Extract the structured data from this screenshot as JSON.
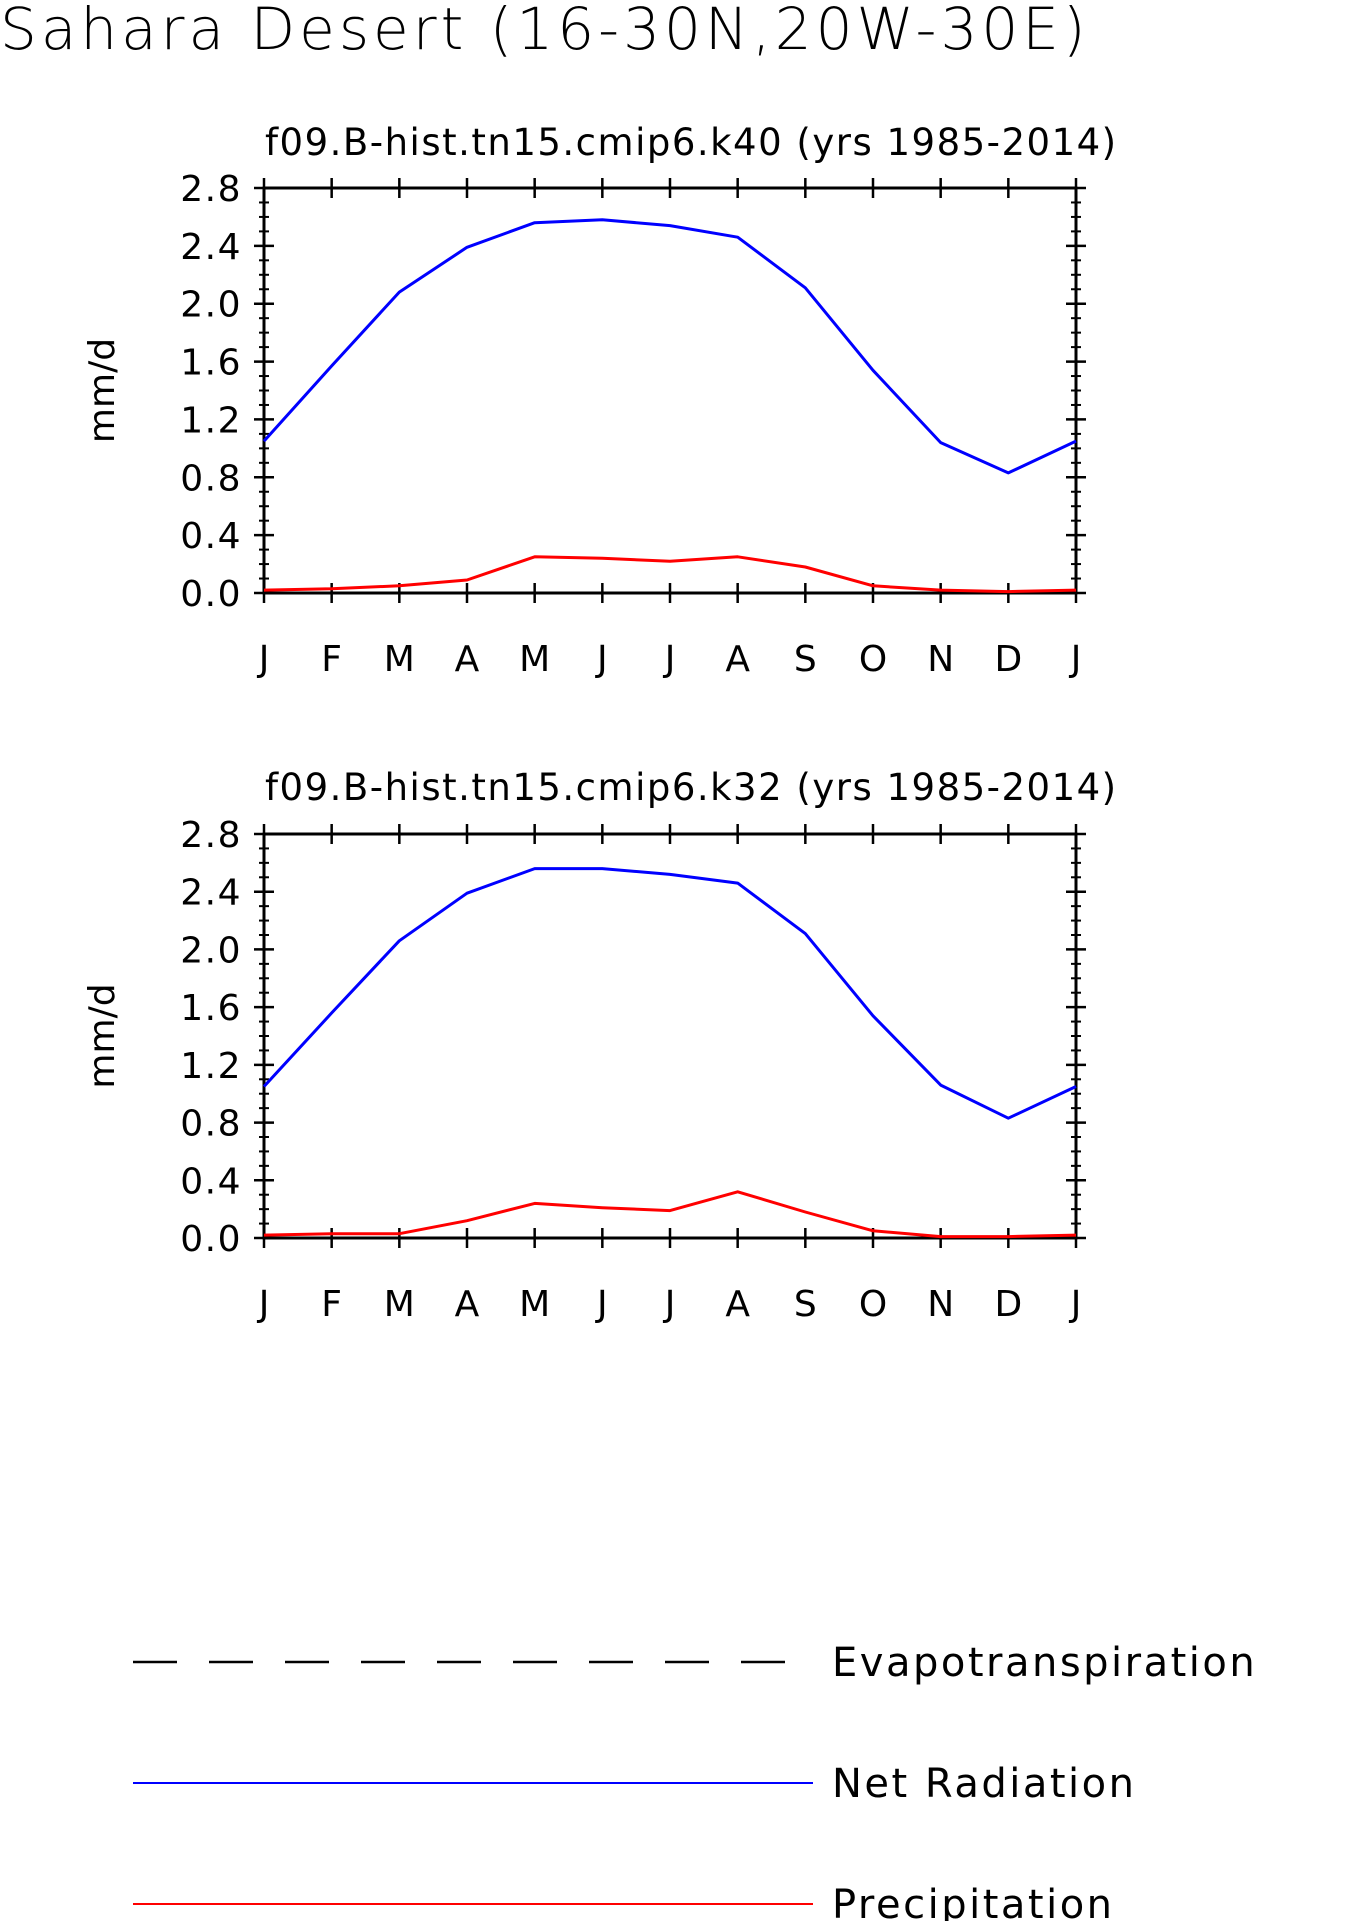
{
  "title": "Sahara Desert (16-30N,20W-30E)",
  "chart_data": [
    {
      "type": "line",
      "title": "f09.B-hist.tn15.cmip6.k40 (yrs 1985-2014)",
      "ylabel": "mm/d",
      "xlabel": "",
      "categories": [
        "J",
        "F",
        "M",
        "A",
        "M",
        "J",
        "J",
        "A",
        "S",
        "O",
        "N",
        "D",
        "J"
      ],
      "ylim": [
        0.0,
        2.8
      ],
      "yticks": [
        "0.0",
        "0.4",
        "0.8",
        "1.2",
        "1.6",
        "2.0",
        "2.4",
        "2.8"
      ],
      "series": [
        {
          "name": "Net Radiation",
          "color": "#0000ff",
          "dash": "solid",
          "values": [
            1.05,
            1.57,
            2.08,
            2.39,
            2.56,
            2.58,
            2.54,
            2.46,
            2.11,
            1.54,
            1.04,
            0.83,
            1.05
          ]
        },
        {
          "name": "Precipitation",
          "color": "#ff0000",
          "dash": "solid",
          "values": [
            0.02,
            0.03,
            0.05,
            0.09,
            0.25,
            0.24,
            0.22,
            0.25,
            0.18,
            0.05,
            0.02,
            0.01,
            0.02
          ]
        }
      ]
    },
    {
      "type": "line",
      "title": "f09.B-hist.tn15.cmip6.k32 (yrs 1985-2014)",
      "ylabel": "mm/d",
      "xlabel": "",
      "categories": [
        "J",
        "F",
        "M",
        "A",
        "M",
        "J",
        "J",
        "A",
        "S",
        "O",
        "N",
        "D",
        "J"
      ],
      "ylim": [
        0.0,
        2.8
      ],
      "yticks": [
        "0.0",
        "0.4",
        "0.8",
        "1.2",
        "1.6",
        "2.0",
        "2.4",
        "2.8"
      ],
      "series": [
        {
          "name": "Net Radiation",
          "color": "#0000ff",
          "dash": "solid",
          "values": [
            1.05,
            1.56,
            2.06,
            2.39,
            2.56,
            2.56,
            2.52,
            2.46,
            2.11,
            1.54,
            1.06,
            0.83,
            1.05
          ]
        },
        {
          "name": "Precipitation",
          "color": "#ff0000",
          "dash": "solid",
          "values": [
            0.02,
            0.03,
            0.03,
            0.12,
            0.24,
            0.21,
            0.19,
            0.32,
            0.18,
            0.05,
            0.01,
            0.01,
            0.02
          ]
        }
      ]
    }
  ],
  "legend": {
    "position": "bottom",
    "items": [
      {
        "label": "Evapotranspiration",
        "color": "#000000",
        "dash": "dashed"
      },
      {
        "label": "Net Radiation",
        "color": "#0000ff",
        "dash": "solid"
      },
      {
        "label": "Precipitation",
        "color": "#ff0000",
        "dash": "solid"
      }
    ]
  }
}
